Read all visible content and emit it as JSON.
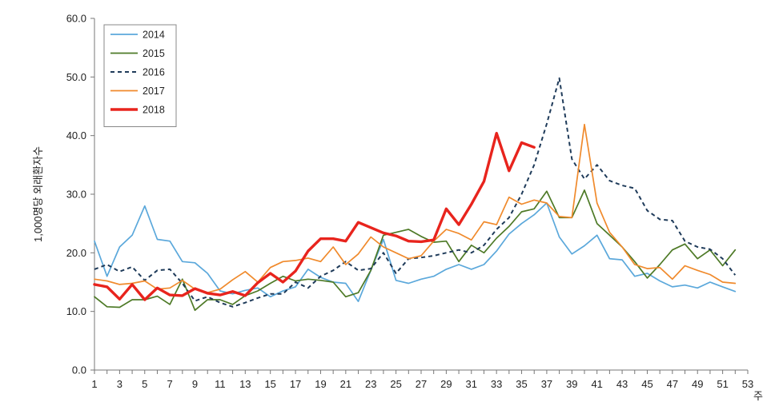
{
  "chart_data": {
    "type": "line",
    "ylabel": "1,000명당 외래환자수",
    "xlabel": "주",
    "ylim": [
      0,
      60
    ],
    "xlim": [
      1,
      53
    ],
    "grid": false,
    "legend_position": "top-left",
    "y_ticks": [
      "0.0",
      "10.0",
      "20.0",
      "30.0",
      "40.0",
      "50.0",
      "60.0"
    ],
    "x_ticks": [
      1,
      3,
      5,
      7,
      9,
      11,
      13,
      15,
      17,
      19,
      21,
      23,
      25,
      27,
      29,
      31,
      33,
      35,
      37,
      39,
      41,
      43,
      45,
      47,
      49,
      51,
      53
    ],
    "series": [
      {
        "name": "2014",
        "color": "#5BA8DB",
        "dash": "",
        "width": 1.7,
        "start": 1,
        "values": [
          22,
          16,
          21,
          23,
          28,
          22.3,
          22,
          18.5,
          18.3,
          16.5,
          13.5,
          13,
          13.6,
          14,
          12.5,
          13.5,
          14.2,
          17.2,
          15.8,
          15,
          14.8,
          11.7,
          17,
          22.3,
          15.3,
          14.8,
          15.5,
          16,
          17.2,
          18,
          17.2,
          18,
          20.3,
          23.2,
          25,
          26.5,
          28.5,
          22.7,
          19.8,
          21.2,
          23,
          19,
          18.8,
          16,
          16.5,
          15.2,
          14.2,
          14.5,
          14,
          15,
          14.2,
          13.4
        ]
      },
      {
        "name": "2015",
        "color": "#4E7A27",
        "dash": "",
        "width": 1.7,
        "start": 1,
        "values": [
          12.5,
          10.8,
          10.7,
          12,
          12,
          12.6,
          11.2,
          15.5,
          10.2,
          12,
          12,
          11.2,
          12.7,
          13.5,
          14.8,
          16,
          15.2,
          15.5,
          15.3,
          15,
          12.5,
          13.2,
          17,
          23,
          23.5,
          24,
          22.8,
          21.8,
          22,
          18.5,
          21.3,
          20,
          22.5,
          24.5,
          27,
          27.5,
          30.5,
          26,
          26,
          30.7,
          25,
          23,
          21,
          18.5,
          15.7,
          18,
          20.5,
          21.5,
          19,
          20.5,
          17.8,
          20.5
        ]
      },
      {
        "name": "2016",
        "color": "#1F3B5A",
        "dash": "5 4",
        "width": 2,
        "start": 1,
        "values": [
          17.2,
          18,
          16.8,
          17.6,
          15.3,
          17,
          17.2,
          14.8,
          11.8,
          12.5,
          11.5,
          10.8,
          11.5,
          12.3,
          13,
          13,
          15,
          14,
          16,
          17,
          18.5,
          17,
          17.3,
          20,
          16.5,
          19,
          19.2,
          19.5,
          20,
          20.5,
          20,
          21.3,
          24,
          26,
          30,
          35,
          42,
          49.8,
          36,
          32.6,
          35,
          32.3,
          31.5,
          31,
          27.2,
          25.7,
          25.5,
          22,
          21,
          20.6,
          19,
          16.2
        ]
      },
      {
        "name": "2017",
        "color": "#F08A2C",
        "dash": "",
        "width": 1.7,
        "start": 1,
        "values": [
          15.5,
          15.2,
          14.6,
          14.8,
          15.2,
          13.8,
          14,
          15.3,
          13.8,
          13.2,
          13.8,
          15.4,
          16.8,
          15,
          17.5,
          18.5,
          18.7,
          19.1,
          18.5,
          21,
          18,
          19.8,
          22.7,
          21,
          20,
          19,
          19.5,
          22,
          24,
          23.3,
          22.2,
          25.3,
          24.8,
          29.5,
          28.3,
          29,
          28.5,
          26.2,
          26,
          41.9,
          28.5,
          23.5,
          21,
          18,
          17.3,
          17.5,
          15.5,
          17.8,
          17,
          16.3,
          15,
          14.8
        ]
      },
      {
        "name": "2018",
        "color": "#E8241D",
        "dash": "",
        "width": 3.4,
        "start": 1,
        "values": [
          14.6,
          14.2,
          12.1,
          14.6,
          12,
          14,
          12.8,
          12.7,
          13.9,
          13.1,
          12.8,
          13.4,
          12.7,
          14.9,
          16.5,
          15,
          16.9,
          20.3,
          22.4,
          22.4,
          22,
          25.2,
          24.3,
          23.4,
          22.9,
          22,
          21.9,
          22.2,
          27.5,
          24.8,
          28.3,
          32.2,
          40.4,
          34,
          38.8,
          38
        ]
      }
    ]
  }
}
